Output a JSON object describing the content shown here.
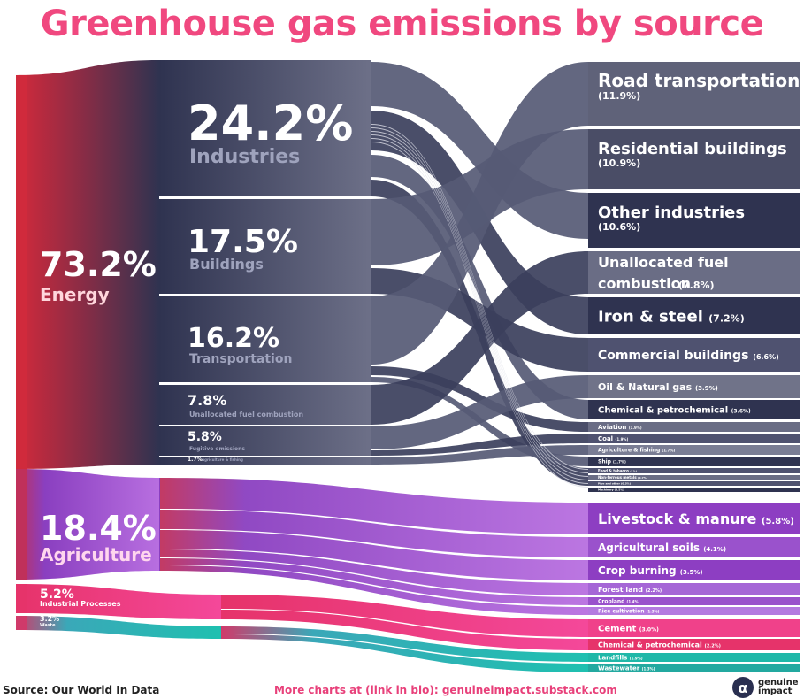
{
  "title": "Greenhouse gas emissions by source",
  "footer": {
    "source": "Source: Our World In Data",
    "more_charts": "More charts at (link in bio): genuineimpact.substack.com",
    "brand": "genuine impact"
  },
  "icons": {
    "brand_logo": "genuine-impact-logo"
  },
  "colors": {
    "title": "#f0487f",
    "energy": "#d02a3c",
    "navy": "#2f3350",
    "agriculture_purple": "#8d3ec2",
    "agriculture_magenta": "#c53fa9",
    "industrial_pink": "#ec3f7a",
    "waste_teal": "#2dbcb6",
    "link": "#e8407a"
  },
  "sectors": [
    {
      "value": "73.2%",
      "label": "Energy"
    },
    {
      "value": "18.4%",
      "label": "Agriculture"
    },
    {
      "value": "5.2%",
      "label": "Industrial Processes"
    },
    {
      "value": "3.2%",
      "label": "Waste"
    }
  ],
  "energy_subsectors": [
    {
      "value": "24.2%",
      "label": "Industries"
    },
    {
      "value": "17.5%",
      "label": "Buildings"
    },
    {
      "value": "16.2%",
      "label": "Transportation"
    },
    {
      "value": "7.8%",
      "label": "Unallocated fuel combustion"
    },
    {
      "value": "5.8%",
      "label": "Fugitive emissions"
    },
    {
      "value": "1.7%",
      "label": "Agriculture & fishing"
    }
  ],
  "sources": [
    {
      "label": "Road transportation",
      "value": "(11.9%)"
    },
    {
      "label": "Residential buildings",
      "value": "(10.9%)"
    },
    {
      "label": "Other industries",
      "value": "(10.6%)"
    },
    {
      "label": "Unallocated fuel combustion",
      "value": "(7.8%)"
    },
    {
      "label": "Iron & steel",
      "value": "(7.2%)"
    },
    {
      "label": "Commercial buildings",
      "value": "(6.6%)"
    },
    {
      "label": "Oil & Natural gas",
      "value": "(3.9%)"
    },
    {
      "label": "Chemical & petrochemical",
      "value": "(3.6%)"
    },
    {
      "label": "Aviation",
      "value": "(1.9%)"
    },
    {
      "label": "Coal",
      "value": "(1.9%)"
    },
    {
      "label": "Agriculture & fishing",
      "value": "(1.7%)"
    },
    {
      "label": "Ship",
      "value": "(1.7%)"
    },
    {
      "label": "Food & tobacco",
      "value": "(1%)"
    },
    {
      "label": "Non-ferrous metals",
      "value": "(0.7%)"
    },
    {
      "label": "Pipe and other",
      "value": "(0.3%)"
    },
    {
      "label": "Machinery",
      "value": "(0.5%)"
    },
    {
      "label": "Livestock & manure",
      "value": "(5.8%)"
    },
    {
      "label": "Agricultural soils",
      "value": "(4.1%)"
    },
    {
      "label": "Crop burning",
      "value": "(3.5%)"
    },
    {
      "label": "Forest land",
      "value": "(2.2%)"
    },
    {
      "label": "Cropland",
      "value": "(1.4%)"
    },
    {
      "label": "Rice cultivation",
      "value": "(1.3%)"
    },
    {
      "label": "Cement",
      "value": "(3.0%)"
    },
    {
      "label": "Chemical & petrochemical",
      "value": "(2.2%)"
    },
    {
      "label": "Landfills",
      "value": "(1.9%)"
    },
    {
      "label": "Wastewater",
      "value": "(1.3%)"
    }
  ]
}
